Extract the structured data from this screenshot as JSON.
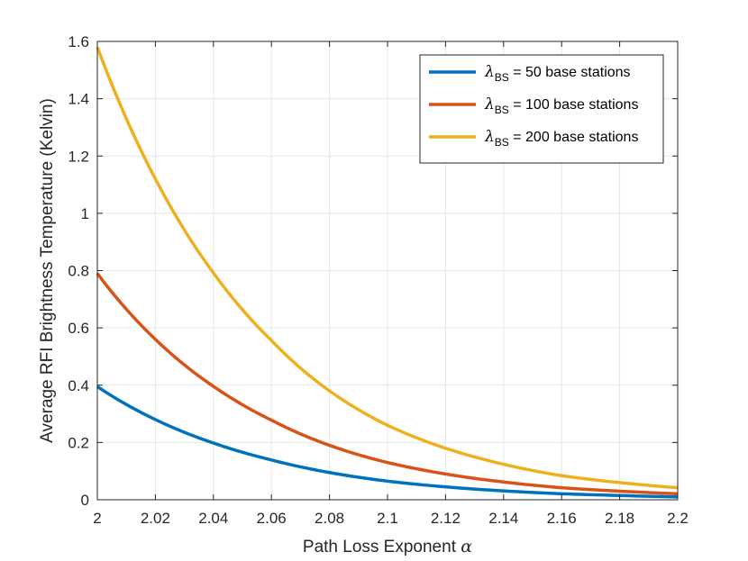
{
  "chart_data": {
    "type": "line",
    "title": "",
    "xlabel": "Path Loss Exponent α",
    "xlabel_text": "Path Loss Exponent ",
    "xlabel_symbol": "α",
    "ylabel": "Average RFI Brightness Temperature (Kelvin)",
    "xlim": [
      2,
      2.2
    ],
    "ylim": [
      0,
      1.6
    ],
    "xticks": [
      2,
      2.02,
      2.04,
      2.06,
      2.08,
      2.1,
      2.12,
      2.14,
      2.16,
      2.18,
      2.2
    ],
    "xtick_labels": [
      "2",
      "2.02",
      "2.04",
      "2.06",
      "2.08",
      "2.1",
      "2.12",
      "2.14",
      "2.16",
      "2.18",
      "2.2"
    ],
    "yticks": [
      0,
      0.2,
      0.4,
      0.6,
      0.8,
      1,
      1.2,
      1.4,
      1.6
    ],
    "ytick_labels": [
      "0",
      "0.2",
      "0.4",
      "0.6",
      "0.8",
      "1",
      "1.2",
      "1.4",
      "1.6"
    ],
    "grid": true,
    "legend_position": "top-right",
    "x": [
      2.0,
      2.02,
      2.04,
      2.06,
      2.08,
      2.1,
      2.12,
      2.14,
      2.16,
      2.18,
      2.2
    ],
    "series": [
      {
        "name": "λBS = 50 base stations",
        "legend_symbol": "λ",
        "legend_subscript": "BS",
        "legend_rest": " = 50 base stations",
        "color": "#0072BD",
        "values": [
          0.395,
          0.28,
          0.198,
          0.139,
          0.095,
          0.065,
          0.045,
          0.031,
          0.021,
          0.015,
          0.01
        ]
      },
      {
        "name": "λBS = 100 base stations",
        "legend_symbol": "λ",
        "legend_subscript": "BS",
        "legend_rest": " = 100 base stations",
        "color": "#D95319",
        "values": [
          0.79,
          0.56,
          0.396,
          0.278,
          0.19,
          0.13,
          0.09,
          0.062,
          0.042,
          0.03,
          0.021
        ]
      },
      {
        "name": "λBS = 200 base stations",
        "legend_symbol": "λ",
        "legend_subscript": "BS",
        "legend_rest": " = 200 base stations",
        "color": "#EDB120",
        "values": [
          1.58,
          1.12,
          0.792,
          0.556,
          0.38,
          0.26,
          0.18,
          0.124,
          0.084,
          0.06,
          0.042
        ]
      }
    ]
  }
}
